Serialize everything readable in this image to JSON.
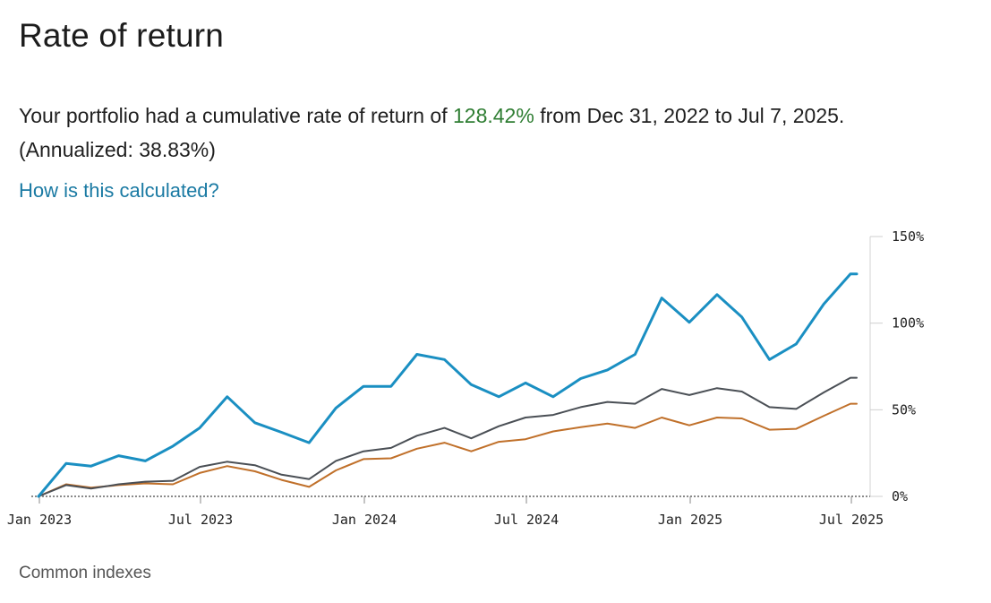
{
  "page": {
    "title": "Rate of return",
    "summary_prefix": "Your portfolio had a cumulative rate of return of ",
    "summary_rate": "128.42%",
    "summary_suffix": " from Dec 31, 2022 to Jul 7, 2025.",
    "annualized": "(Annualized: 38.83%)",
    "help_link": "How is this calculated?",
    "footer_label": "Common indexes"
  },
  "colors": {
    "portfolio": "#1a8fc2",
    "index_dark": "#4a4f55",
    "index_orange": "#c0702a",
    "summary_rate": "#2e7d32",
    "link": "#1a7aa3"
  },
  "chart_data": {
    "type": "line",
    "xlabel": "",
    "ylabel": "",
    "x": [
      "2022-12-31",
      "2023-01-31",
      "2023-02-28",
      "2023-03-31",
      "2023-04-30",
      "2023-05-31",
      "2023-06-30",
      "2023-07-31",
      "2023-08-31",
      "2023-09-30",
      "2023-10-31",
      "2023-11-30",
      "2023-12-31",
      "2024-01-31",
      "2024-02-29",
      "2024-03-31",
      "2024-04-30",
      "2024-05-31",
      "2024-06-30",
      "2024-07-31",
      "2024-08-31",
      "2024-09-30",
      "2024-10-31",
      "2024-11-30",
      "2024-12-31",
      "2025-01-31",
      "2025-02-28",
      "2025-03-31",
      "2025-04-30",
      "2025-05-31",
      "2025-06-30",
      "2025-07-07"
    ],
    "x_ticks": [
      {
        "date": "2023-01-01",
        "label": "Jan 2023"
      },
      {
        "date": "2023-07-01",
        "label": "Jul 2023"
      },
      {
        "date": "2024-01-01",
        "label": "Jan 2024"
      },
      {
        "date": "2024-07-01",
        "label": "Jul 2024"
      },
      {
        "date": "2025-01-01",
        "label": "Jan 2025"
      },
      {
        "date": "2025-07-01",
        "label": "Jul 2025"
      }
    ],
    "y_ticks": [
      {
        "value": 0,
        "label": "0%"
      },
      {
        "value": 50,
        "label": "50%"
      },
      {
        "value": 100,
        "label": "100%"
      },
      {
        "value": 150,
        "label": "150%"
      }
    ],
    "ylim": [
      0,
      150
    ],
    "y_axis_position": "right",
    "baseline_dotted": true,
    "series": [
      {
        "color": "#1a8fc2",
        "values": [
          0,
          19,
          17.5,
          23.5,
          20.5,
          29,
          39.5,
          57.5,
          42.5,
          37,
          31,
          51,
          63.5,
          63.5,
          82,
          79,
          64.5,
          57.5,
          65.5,
          57.5,
          68,
          73,
          82,
          114.5,
          100.5,
          116.5,
          103.5,
          79,
          88,
          111,
          128.4,
          128.4
        ]
      },
      {
        "color": "#4a4f55",
        "values": [
          0,
          6.5,
          4.5,
          7,
          8.5,
          9,
          17,
          20,
          18,
          12.5,
          10,
          20.5,
          26,
          28,
          35,
          39.5,
          33.5,
          40.5,
          45.5,
          47,
          51.5,
          54.5,
          53.5,
          62,
          58.5,
          62.5,
          60.5,
          51.5,
          50.5,
          60,
          68.5,
          68.5
        ]
      },
      {
        "color": "#c0702a",
        "values": [
          0,
          7,
          5,
          6.5,
          7.5,
          7,
          13.5,
          17.5,
          14.5,
          9.5,
          5.5,
          15,
          21.5,
          22,
          27.5,
          31,
          26,
          31.5,
          33,
          37.5,
          40,
          42,
          39.5,
          45.5,
          41,
          45.5,
          45,
          38.5,
          39,
          46.5,
          53.5,
          53.5
        ]
      }
    ]
  }
}
